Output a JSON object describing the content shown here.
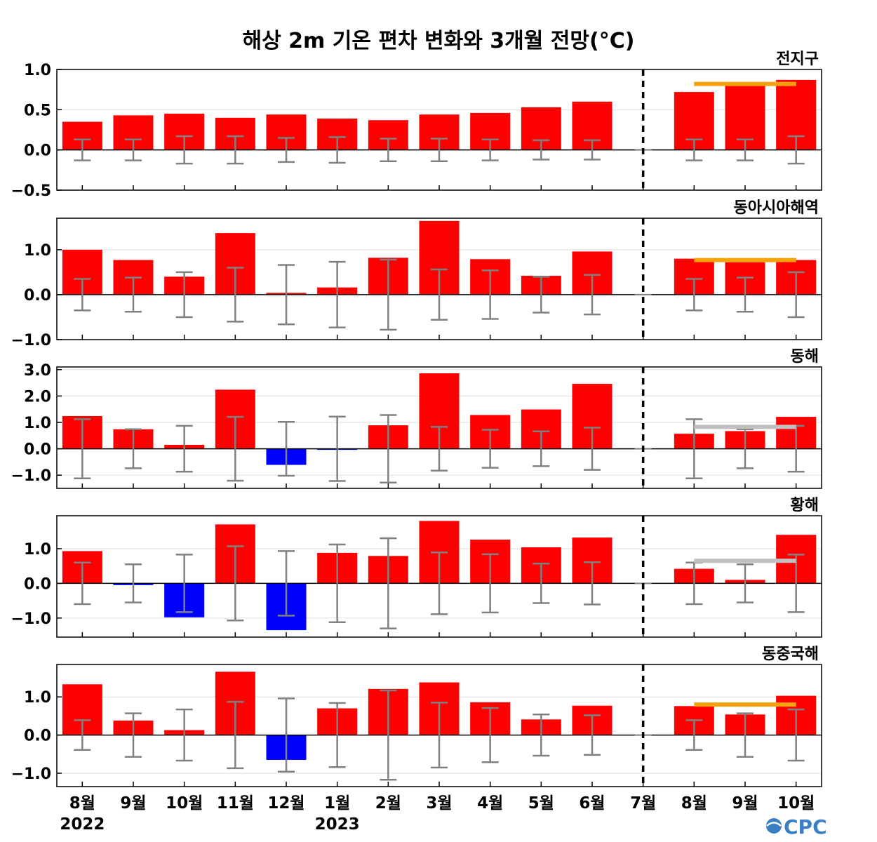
{
  "title": "해상 2m 기온 편차 변화와 3개월 전망(°C)",
  "logo": "CPC",
  "colors": {
    "positive": "#ff0000",
    "negative": "#0000ff",
    "error_bar": "#808080",
    "forecast_line_orange": "#f5a20a",
    "forecast_line_gray": "#c0c0c0",
    "divider": "#000000",
    "logo": "#3a7fc4"
  },
  "chart_data": {
    "type": "bar",
    "categories": [
      "8월",
      "9월",
      "10월",
      "11월",
      "12월",
      "1월",
      "2월",
      "3월",
      "4월",
      "5월",
      "6월",
      "7월",
      "8월",
      "9월",
      "10월"
    ],
    "year_labels": [
      {
        "category_index": 0,
        "label": "2022"
      },
      {
        "category_index": 5,
        "label": "2023"
      }
    ],
    "divider_after_index": 11,
    "grid": true,
    "panels": [
      {
        "label": "전지구",
        "ylim": [
          -0.5,
          1.0
        ],
        "yticks": [
          1.0,
          0.5,
          0.0,
          -0.5
        ],
        "ytick_labels": [
          "1.0",
          "0.5",
          "0.0",
          "−0.5"
        ],
        "values": [
          0.35,
          0.43,
          0.45,
          0.4,
          0.44,
          0.39,
          0.37,
          0.44,
          0.46,
          0.53,
          0.6,
          0.0,
          0.72,
          0.83,
          0.87
        ],
        "error": [
          0.13,
          0.13,
          0.17,
          0.17,
          0.15,
          0.16,
          0.14,
          0.14,
          0.13,
          0.12,
          0.12,
          0.0,
          0.13,
          0.13,
          0.17
        ],
        "forecast_line": {
          "from_index": 12,
          "to_index": 14,
          "value": 0.82,
          "color": "orange"
        }
      },
      {
        "label": "동아시아해역",
        "ylim": [
          -1.0,
          1.7
        ],
        "yticks": [
          1.0,
          0.0,
          -1.0
        ],
        "ytick_labels": [
          "1.0",
          "0.0",
          "−1.0"
        ],
        "values": [
          1.0,
          0.77,
          0.4,
          1.37,
          0.04,
          0.16,
          0.82,
          1.64,
          0.79,
          0.42,
          0.96,
          0.0,
          0.8,
          0.72,
          0.77
        ],
        "error": [
          0.35,
          0.38,
          0.5,
          0.6,
          0.66,
          0.73,
          0.78,
          0.56,
          0.54,
          0.4,
          0.44,
          0.0,
          0.35,
          0.38,
          0.5
        ],
        "forecast_line": {
          "from_index": 12,
          "to_index": 14,
          "value": 0.77,
          "color": "orange"
        }
      },
      {
        "label": "동해",
        "ylim": [
          -1.5,
          3.1
        ],
        "yticks": [
          3.0,
          2.0,
          1.0,
          0.0,
          -1.0
        ],
        "ytick_labels": [
          "3.0",
          "2.0",
          "1.0",
          "0.0",
          "−1.0"
        ],
        "values": [
          1.24,
          0.74,
          0.15,
          2.24,
          -0.61,
          -0.04,
          0.89,
          2.86,
          1.28,
          1.49,
          2.46,
          0.0,
          0.57,
          0.67,
          1.21
        ],
        "error": [
          1.12,
          0.74,
          0.87,
          1.21,
          1.02,
          1.22,
          1.28,
          0.83,
          0.72,
          0.66,
          0.8,
          0.0,
          1.12,
          0.74,
          0.87
        ],
        "forecast_line": {
          "from_index": 12,
          "to_index": 14,
          "value": 0.83,
          "color": "gray"
        }
      },
      {
        "label": "황해",
        "ylim": [
          -1.55,
          1.95
        ],
        "yticks": [
          1.0,
          0.0,
          -1.0
        ],
        "ytick_labels": [
          "1.0",
          "0.0",
          "−1.0"
        ],
        "values": [
          0.93,
          -0.05,
          -0.98,
          1.7,
          -1.35,
          0.88,
          0.79,
          1.8,
          1.26,
          1.04,
          1.32,
          0.0,
          0.42,
          0.1,
          1.4
        ],
        "error": [
          0.6,
          0.55,
          0.83,
          1.07,
          0.93,
          1.12,
          1.3,
          0.89,
          0.84,
          0.57,
          0.61,
          0.0,
          0.6,
          0.55,
          0.83
        ],
        "forecast_line": {
          "from_index": 12,
          "to_index": 14,
          "value": 0.65,
          "color": "gray"
        }
      },
      {
        "label": "동중국해",
        "ylim": [
          -1.35,
          1.85
        ],
        "yticks": [
          1.0,
          0.0,
          -1.0
        ],
        "ytick_labels": [
          "1.0",
          "0.0",
          "−1.0"
        ],
        "values": [
          1.33,
          0.38,
          0.13,
          1.66,
          -0.65,
          0.7,
          1.21,
          1.38,
          0.86,
          0.41,
          0.77,
          0.0,
          0.76,
          0.54,
          1.03
        ],
        "error": [
          0.39,
          0.57,
          0.67,
          0.87,
          0.96,
          0.84,
          1.17,
          0.85,
          0.71,
          0.54,
          0.52,
          0.0,
          0.39,
          0.57,
          0.67
        ],
        "forecast_line": {
          "from_index": 12,
          "to_index": 14,
          "value": 0.8,
          "color": "orange"
        }
      }
    ]
  }
}
